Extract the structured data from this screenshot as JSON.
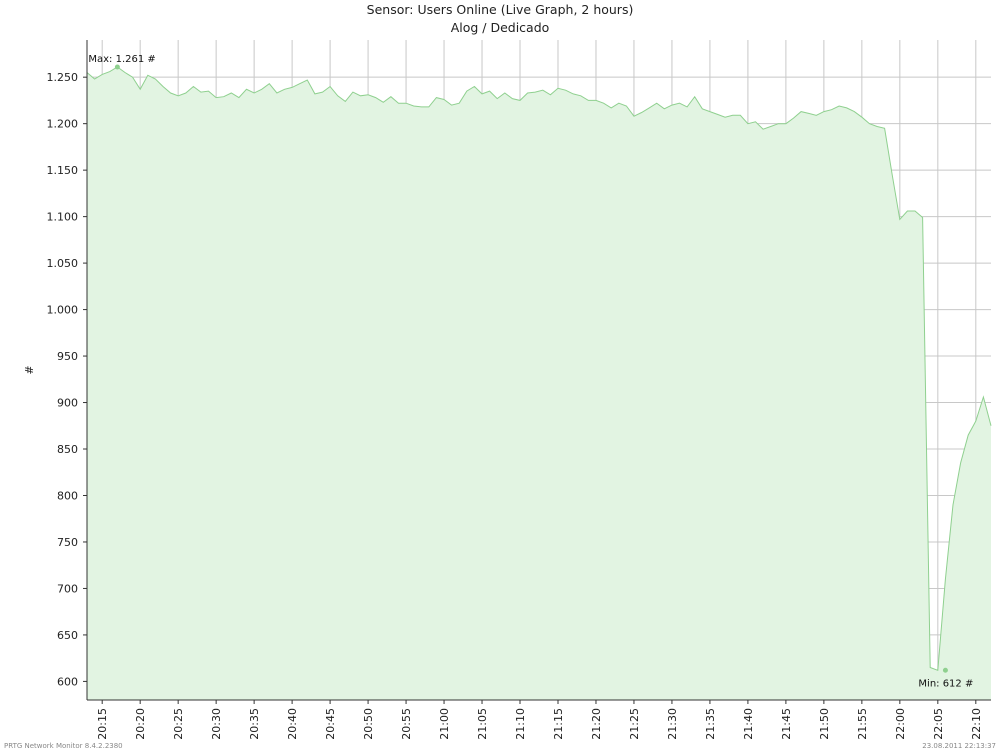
{
  "chart_data": {
    "type": "area",
    "title": "Sensor: Users Online (Live Graph, 2 hours)",
    "subtitle": "Alog / Dedicado",
    "ylabel": "#",
    "xlabel": "",
    "ylim": [
      580,
      1290
    ],
    "y_ticks": [
      600,
      650,
      700,
      750,
      800,
      850,
      900,
      950,
      1000,
      1050,
      1100,
      1150,
      1200,
      1250
    ],
    "y_tick_labels": [
      "600",
      "650",
      "700",
      "750",
      "800",
      "850",
      "900",
      "950",
      "1.000",
      "1.050",
      "1.100",
      "1.150",
      "1.200",
      "1.250"
    ],
    "x_range": [
      "20:13",
      "22:12"
    ],
    "x_ticks": [
      "20:15",
      "20:20",
      "20:25",
      "20:30",
      "20:35",
      "20:40",
      "20:45",
      "20:50",
      "20:55",
      "21:00",
      "21:05",
      "21:10",
      "21:15",
      "21:20",
      "21:25",
      "21:30",
      "21:35",
      "21:40",
      "21:45",
      "21:50",
      "21:55",
      "22:00",
      "22:05",
      "22:10"
    ],
    "grid": true,
    "colors": {
      "fill": "#e2f4e2",
      "line": "#8fd08f",
      "grid": "#c8c8c8",
      "axis": "#333333"
    },
    "series": [
      {
        "x": [
          "20:13",
          "20:14",
          "20:15",
          "20:16",
          "20:17",
          "20:18",
          "20:19",
          "20:20",
          "20:21",
          "20:22",
          "20:23",
          "20:24",
          "20:25",
          "20:26",
          "20:27",
          "20:28",
          "20:29",
          "20:30",
          "20:31",
          "20:32",
          "20:33",
          "20:34",
          "20:35",
          "20:36",
          "20:37",
          "20:38",
          "20:39",
          "20:40",
          "20:41",
          "20:42",
          "20:43",
          "20:44",
          "20:45",
          "20:46",
          "20:47",
          "20:48",
          "20:49",
          "20:50",
          "20:51",
          "20:52",
          "20:53",
          "20:54",
          "20:55",
          "20:56",
          "20:57",
          "20:58",
          "20:59",
          "21:00",
          "21:01",
          "21:02",
          "21:03",
          "21:04",
          "21:05",
          "21:06",
          "21:07",
          "21:08",
          "21:09",
          "21:10",
          "21:11",
          "21:12",
          "21:13",
          "21:14",
          "21:15",
          "21:16",
          "21:17",
          "21:18",
          "21:19",
          "21:20",
          "21:21",
          "21:22",
          "21:23",
          "21:24",
          "21:25",
          "21:26",
          "21:27",
          "21:28",
          "21:29",
          "21:30",
          "21:31",
          "21:32",
          "21:33",
          "21:34",
          "21:35",
          "21:36",
          "21:37",
          "21:38",
          "21:39",
          "21:40",
          "21:41",
          "21:42",
          "21:43",
          "21:44",
          "21:45",
          "21:46",
          "21:47",
          "21:48",
          "21:49",
          "21:50",
          "21:51",
          "21:52",
          "21:53",
          "21:54",
          "21:55",
          "21:56",
          "21:57",
          "21:58",
          "21:59",
          "22:00",
          "22:01",
          "22:02",
          "22:03",
          "22:04",
          "22:05",
          "22:06",
          "22:07",
          "22:08",
          "22:09",
          "22:10",
          "22:11",
          "22:12"
        ],
        "values": [
          1255,
          1248,
          1253,
          1256,
          1261,
          1255,
          1250,
          1237,
          1252,
          1248,
          1240,
          1233,
          1230,
          1233,
          1240,
          1234,
          1235,
          1228,
          1229,
          1233,
          1228,
          1237,
          1233,
          1237,
          1243,
          1233,
          1237,
          1239,
          1243,
          1247,
          1232,
          1234,
          1240,
          1230,
          1224,
          1234,
          1230,
          1231,
          1228,
          1223,
          1229,
          1222,
          1222,
          1219,
          1218,
          1218,
          1228,
          1226,
          1220,
          1222,
          1235,
          1240,
          1232,
          1235,
          1227,
          1233,
          1227,
          1225,
          1233,
          1234,
          1236,
          1231,
          1238,
          1236,
          1232,
          1230,
          1225,
          1225,
          1222,
          1217,
          1222,
          1219,
          1208,
          1212,
          1217,
          1222,
          1216,
          1220,
          1222,
          1218,
          1229,
          1216,
          1213,
          1210,
          1207,
          1209,
          1209,
          1200,
          1202,
          1194,
          1197,
          1200,
          1200,
          1206,
          1213,
          1211,
          1209,
          1213,
          1215,
          1219,
          1217,
          1213,
          1207,
          1200,
          1197,
          1195,
          1145,
          1097,
          1106,
          1106,
          1099,
          615,
          612,
          710,
          790,
          835,
          865,
          880,
          906,
          875
        ]
      }
    ],
    "annotations": [
      {
        "label": "Max: 1.261 #",
        "x": "20:17",
        "y": 1261
      },
      {
        "label": "Min: 612 #",
        "x": "22:06",
        "y": 612
      }
    ],
    "footer_left": "PRTG Network Monitor 8.4.2.2380",
    "footer_right": "23.08.2011 22:13:37"
  }
}
